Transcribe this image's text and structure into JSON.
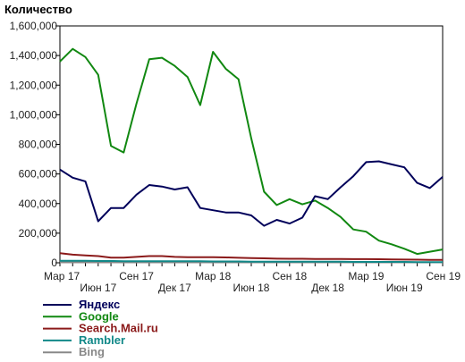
{
  "chart_data": {
    "type": "line",
    "title": "",
    "ylabel": "Количество",
    "xlabel": "",
    "ylim": [
      0,
      1600000
    ],
    "yticks": [
      {
        "value": 0,
        "label": "0"
      },
      {
        "value": 200000,
        "label": "200,000"
      },
      {
        "value": 400000,
        "label": "400,000"
      },
      {
        "value": 600000,
        "label": "600,000"
      },
      {
        "value": 800000,
        "label": "800,000"
      },
      {
        "value": 1000000,
        "label": "1,000,000"
      },
      {
        "value": 1200000,
        "label": "1,200,000"
      },
      {
        "value": 1400000,
        "label": "1,400,000"
      },
      {
        "value": 1600000,
        "label": "1,600,000"
      }
    ],
    "x_count": 31,
    "xticks": [
      {
        "index": 0,
        "label": "Мар 17",
        "row": 1
      },
      {
        "index": 3,
        "label": "Июн 17",
        "row": 2
      },
      {
        "index": 6,
        "label": "Сен 17",
        "row": 1
      },
      {
        "index": 9,
        "label": "Дек 17",
        "row": 2
      },
      {
        "index": 12,
        "label": "Мар 18",
        "row": 1
      },
      {
        "index": 15,
        "label": "Июн 18",
        "row": 2
      },
      {
        "index": 18,
        "label": "Сен 18",
        "row": 1
      },
      {
        "index": 21,
        "label": "Дек 18",
        "row": 2
      },
      {
        "index": 24,
        "label": "Мар 19",
        "row": 1
      },
      {
        "index": 27,
        "label": "Июн 19",
        "row": 2
      },
      {
        "index": 30,
        "label": "Сен 19",
        "row": 1
      }
    ],
    "grid": false,
    "legend_position": "bottom-left",
    "series": [
      {
        "name": "Яндекс",
        "color": "#00005a",
        "values": [
          630000,
          575000,
          550000,
          280000,
          370000,
          370000,
          460000,
          525000,
          515000,
          495000,
          510000,
          370000,
          355000,
          340000,
          340000,
          320000,
          250000,
          290000,
          265000,
          305000,
          450000,
          430000,
          510000,
          585000,
          680000,
          685000,
          665000,
          645000,
          540000,
          505000,
          580000
        ]
      },
      {
        "name": "Google",
        "color": "#118811",
        "values": [
          1360000,
          1445000,
          1390000,
          1270000,
          790000,
          745000,
          1075000,
          1375000,
          1385000,
          1330000,
          1255000,
          1065000,
          1425000,
          1310000,
          1240000,
          840000,
          480000,
          390000,
          430000,
          395000,
          420000,
          370000,
          310000,
          225000,
          210000,
          150000,
          125000,
          95000,
          60000,
          75000,
          90000
        ]
      },
      {
        "name": "Search.Mail.ru",
        "color": "#8b1a1a",
        "values": [
          65000,
          55000,
          50000,
          45000,
          35000,
          35000,
          40000,
          45000,
          45000,
          40000,
          38000,
          38000,
          38000,
          36000,
          34000,
          32000,
          30000,
          28000,
          27000,
          27000,
          26000,
          26000,
          26000,
          25000,
          25000,
          24000,
          23000,
          22000,
          21000,
          20000,
          20000
        ]
      },
      {
        "name": "Rambler",
        "color": "#118888",
        "values": [
          14000,
          13000,
          13000,
          12000,
          12000,
          11000,
          11000,
          11000,
          10000,
          10000,
          10000,
          10000,
          9000,
          9000,
          9000,
          8000,
          8000,
          8000,
          8000,
          7000,
          7000,
          7000,
          7000,
          6000,
          6000,
          6000,
          6000,
          6000,
          5000,
          5000,
          5000
        ]
      },
      {
        "name": "Bing",
        "color": "#888888",
        "values": [
          3000,
          3000,
          3000,
          3000,
          3000,
          3000,
          3000,
          3000,
          3000,
          3000,
          3000,
          3000,
          3000,
          3000,
          3000,
          3000,
          3000,
          3000,
          3000,
          3000,
          3000,
          3000,
          3000,
          3000,
          3000,
          3000,
          3000,
          3000,
          3000,
          3000,
          3000
        ]
      }
    ]
  }
}
